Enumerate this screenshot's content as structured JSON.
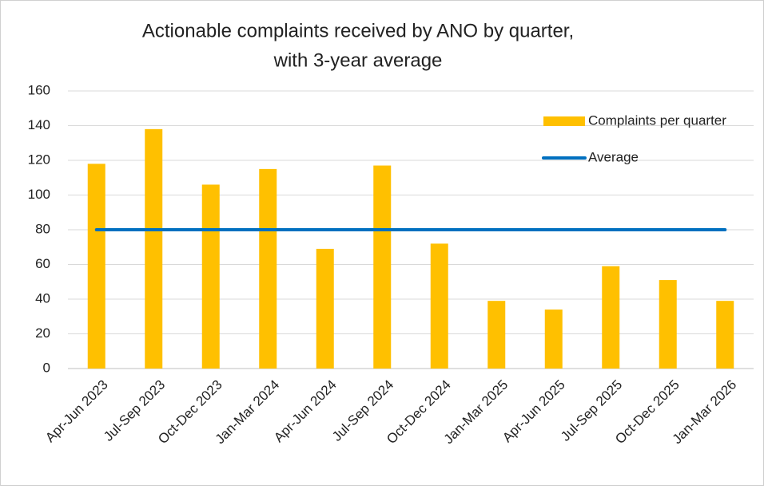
{
  "chart_data": {
    "type": "bar",
    "title": [
      "Actionable complaints received by ANO by quarter,",
      "with 3-year average"
    ],
    "categories": [
      "Apr-Jun 2023",
      "Jul-Sep 2023",
      "Oct-Dec 2023",
      "Jan-Mar 2024",
      "Apr-Jun 2024",
      "Jul-Sep 2024",
      "Oct-Dec 2024",
      "Jan-Mar 2025",
      "Apr-Jun 2025",
      "Jul-Sep 2025",
      "Oct-Dec 2025",
      "Jan-Mar 2026"
    ],
    "series": [
      {
        "name": "Complaints per quarter",
        "color": "#ffc000",
        "type": "bar",
        "values": [
          118,
          138,
          106,
          115,
          69,
          117,
          72,
          39,
          34,
          59,
          51,
          39
        ]
      },
      {
        "name": "Average",
        "color": "#0070c0",
        "type": "line",
        "values": [
          80,
          80,
          80,
          80,
          80,
          80,
          80,
          80,
          80,
          80,
          80,
          80
        ]
      }
    ],
    "ylim": [
      0,
      160
    ],
    "yticks": [
      0,
      20,
      40,
      60,
      80,
      100,
      120,
      140,
      160
    ],
    "grid": true,
    "legend": "top-right"
  }
}
